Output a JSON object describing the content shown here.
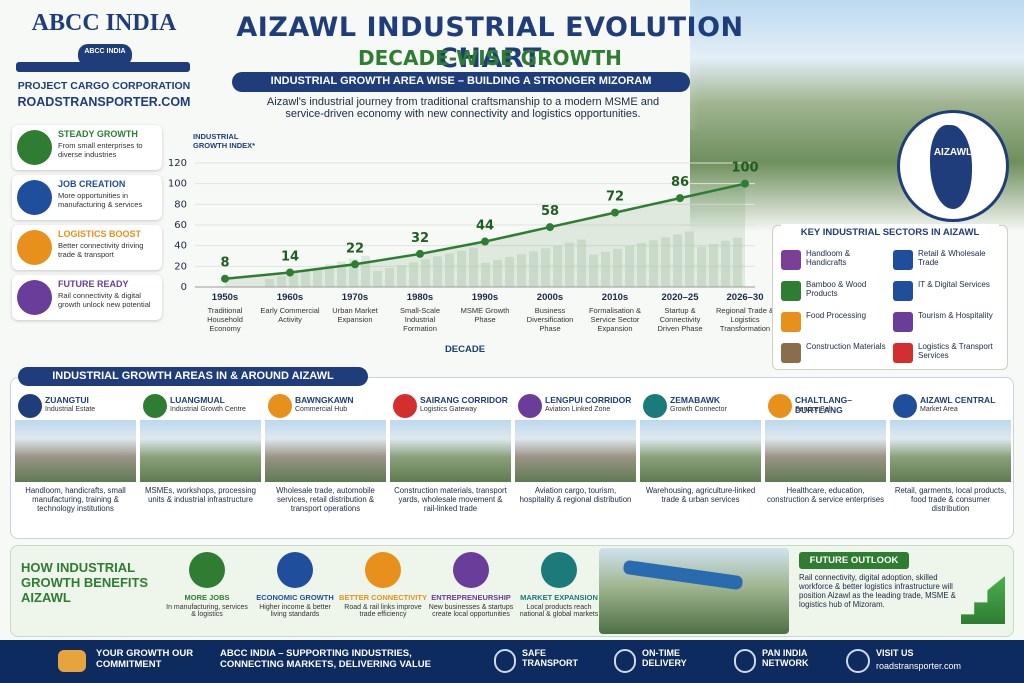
{
  "header": {
    "brand": "ABCC INDIA",
    "logo_text": "ABCC INDIA",
    "tagline": "PROJECT CARGO CORPORATION",
    "website": "ROADSTRANSPORTER.COM",
    "title": "AIZAWL INDUSTRIAL EVOLUTION CHART",
    "subtitle": "DECADE-WISE GROWTH",
    "banner": "INDUSTRIAL GROWTH AREA WISE – BUILDING A STRONGER MIZORAM",
    "intro": "Aizawl's industrial journey from traditional craftsmanship to a modern MSME and service-driven economy with new connectivity and logistics opportunities.",
    "map_label": "AIZAWL"
  },
  "highlights": [
    {
      "title": "STEADY GROWTH",
      "text": "From small enterprises to diverse industries",
      "color": "#2e7d32"
    },
    {
      "title": "JOB CREATION",
      "text": "More opportunities in manufacturing & services",
      "color": "#1f4e9c"
    },
    {
      "title": "LOGISTICS BOOST",
      "text": "Better connectivity driving trade & transport",
      "color": "#e8901c"
    },
    {
      "title": "FUTURE READY",
      "text": "Rail connectivity & digital growth unlock new potential",
      "color": "#6a3d9a"
    }
  ],
  "chart_data": {
    "type": "line",
    "y_label": "INDUSTRIAL GROWTH INDEX*",
    "x_label": "DECADE",
    "categories": [
      "1950s",
      "1960s",
      "1970s",
      "1980s",
      "1990s",
      "2000s",
      "2010s",
      "2020–25",
      "2026–30"
    ],
    "category_notes": [
      "Traditional Household Economy",
      "Early Commercial Activity",
      "Urban Market Expansion",
      "Small-Scale Industrial Formation",
      "MSME Growth Phase",
      "Business Diversification Phase",
      "Formalisation & Service Sector Expansion",
      "Startup & Connectivity Driven Phase",
      "Regional Trade & Logistics Transformation"
    ],
    "values": [
      8,
      14,
      22,
      32,
      44,
      58,
      72,
      86,
      100
    ],
    "color": "#2e7d32",
    "ylim": [
      0,
      120
    ],
    "yticks": [
      0,
      20,
      40,
      60,
      80,
      100,
      120
    ],
    "grid": true
  },
  "sectors": {
    "title": "KEY INDUSTRIAL SECTORS IN AIZAWL",
    "items": [
      {
        "name": "Handloom & Handicrafts",
        "color": "#7b3f98"
      },
      {
        "name": "Retail & Wholesale Trade",
        "color": "#1f4e9c"
      },
      {
        "name": "Bamboo & Wood Products",
        "color": "#2e7d32"
      },
      {
        "name": "IT & Digital Services",
        "color": "#1f4e9c"
      },
      {
        "name": "Food Processing",
        "color": "#e8901c"
      },
      {
        "name": "Tourism & Hospitality",
        "color": "#6a3d9a"
      },
      {
        "name": "Construction Materials",
        "color": "#8a6d4b"
      },
      {
        "name": "Logistics & Transport Services",
        "color": "#d32f2f"
      }
    ]
  },
  "areas": {
    "title": "INDUSTRIAL GROWTH AREAS IN & AROUND AIZAWL",
    "items": [
      {
        "name": "ZUANGTUI",
        "subtitle": "Industrial Estate",
        "text": "Handloom, handicrafts, small manufacturing, training & technology institutions",
        "color": "#1f3d7a"
      },
      {
        "name": "LUANGMUAL",
        "subtitle": "Industrial Growth Centre",
        "text": "MSMEs, workshops, processing units & industrial infrastructure",
        "color": "#2e7d32"
      },
      {
        "name": "BAWNGKAWN",
        "subtitle": "Commercial Hub",
        "text": "Wholesale trade, automobile services, retail distribution & transport operations",
        "color": "#e8901c"
      },
      {
        "name": "SAIRANG CORRIDOR",
        "subtitle": "Logistics Gateway",
        "text": "Construction materials, transport yards, wholesale movement & rail-linked trade",
        "color": "#d32f2f"
      },
      {
        "name": "LENGPUI CORRIDOR",
        "subtitle": "Aviation Linked Zone",
        "text": "Aviation cargo, tourism, hospitality & regional distribution",
        "color": "#6a3d9a"
      },
      {
        "name": "ZEMABAWK",
        "subtitle": "Growth Connector",
        "text": "Warehousing, agriculture-linked trade & urban services",
        "color": "#1b7a7a"
      },
      {
        "name": "CHALTLANG–DURTLANG",
        "subtitle": "Service Belt",
        "text": "Healthcare, education, construction & service enterprises",
        "color": "#e8901c"
      },
      {
        "name": "AIZAWL CENTRAL",
        "subtitle": "Market Area",
        "text": "Retail, garments, local products, food trade & consumer distribution",
        "color": "#1f4e9c"
      }
    ]
  },
  "benefits": {
    "title": "HOW INDUSTRIAL GROWTH BENEFITS AIZAWL",
    "items": [
      {
        "title": "MORE JOBS",
        "text": "In manufacturing, services & logistics",
        "color": "#2e7d32"
      },
      {
        "title": "ECONOMIC GROWTH",
        "text": "Higher income & better living standards",
        "color": "#1f4e9c"
      },
      {
        "title": "BETTER CONNECTIVITY",
        "text": "Road & rail links improve trade efficiency",
        "color": "#e8901c"
      },
      {
        "title": "ENTREPRENEURSHIP",
        "text": "New businesses & startups create local opportunities",
        "color": "#6a3d9a"
      },
      {
        "title": "MARKET EXPANSION",
        "text": "Local products reach national & global markets",
        "color": "#1b7a7a"
      }
    ]
  },
  "outlook": {
    "title": "FUTURE OUTLOOK",
    "text": "Rail connectivity, digital adoption, skilled workforce & better logistics infrastructure will position Aizawl as the leading trade, MSME & logistics hub of Mizoram."
  },
  "footer": {
    "commitment": "YOUR GROWTH OUR COMMITMENT",
    "message": "ABCC INDIA – SUPPORTING INDUSTRIES, CONNECTING MARKETS, DELIVERING VALUE",
    "features": [
      "SAFE TRANSPORT",
      "ON-TIME DELIVERY",
      "PAN INDIA NETWORK"
    ],
    "visit_label": "VISIT US",
    "visit_url": "roadstransporter.com"
  }
}
